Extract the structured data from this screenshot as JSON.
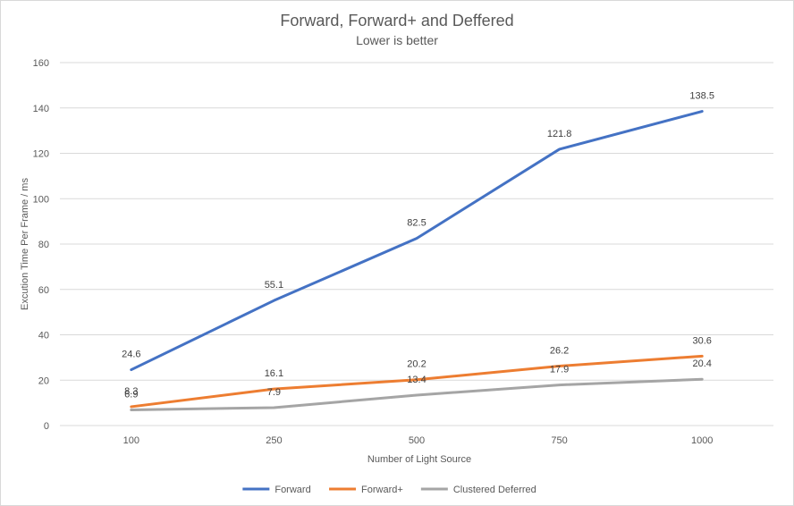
{
  "chart_data": {
    "type": "line",
    "title": "Forward, Forward+ and Deffered",
    "subtitle": "Lower  is better",
    "xlabel": "Number  of Light Source",
    "ylabel": "Excution Time Per Frame / ms",
    "categories": [
      "100",
      "250",
      "500",
      "750",
      "1000"
    ],
    "ylim": [
      0,
      160
    ],
    "yticks": [
      0,
      20,
      40,
      60,
      80,
      100,
      120,
      140,
      160
    ],
    "grid": true,
    "legend_position": "bottom",
    "series": [
      {
        "name": "Forward",
        "color": "#4472c4",
        "values": [
          24.6,
          55.1,
          82.5,
          121.8,
          138.5
        ]
      },
      {
        "name": "Forward+",
        "color": "#ed7d31",
        "values": [
          8.3,
          16.1,
          20.2,
          26.2,
          30.6
        ]
      },
      {
        "name": "Clustered Deferred",
        "color": "#a5a5a5",
        "values": [
          6.9,
          7.9,
          13.4,
          17.9,
          20.4
        ]
      }
    ]
  }
}
